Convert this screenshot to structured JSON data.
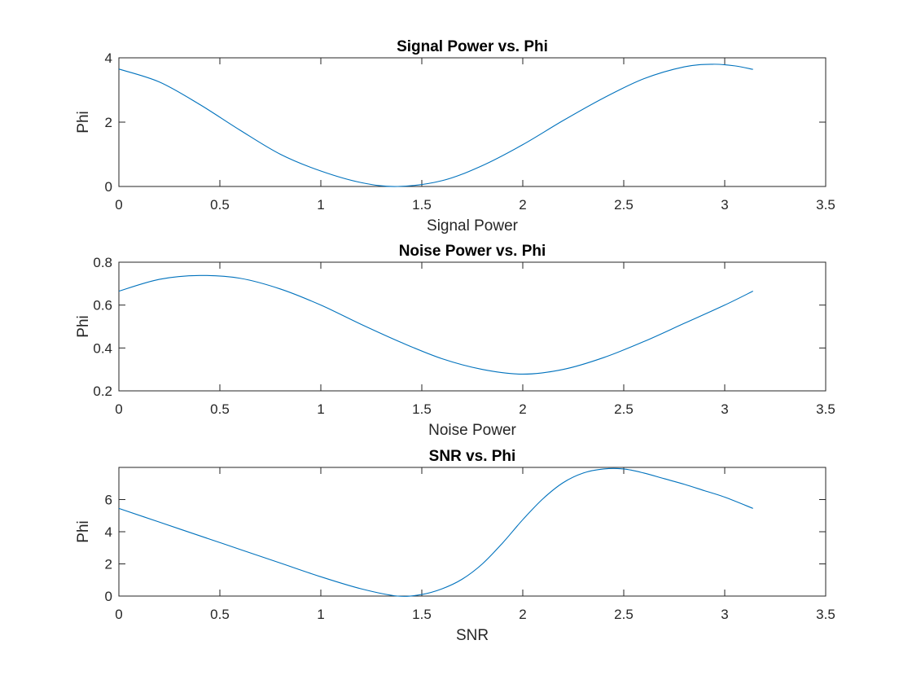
{
  "figure": {
    "background": "#ffffff",
    "line_color": "#0072BD"
  },
  "chart_data": [
    {
      "type": "line",
      "title": "Signal Power vs. Phi",
      "xlabel": "Signal Power",
      "ylabel": "Phi",
      "xlim": [
        0,
        3.5
      ],
      "ylim": [
        0,
        4
      ],
      "xticks": [
        "0",
        "0.5",
        "1",
        "1.5",
        "2",
        "2.5",
        "3",
        "3.5"
      ],
      "yticks": [
        "0",
        "2",
        "4"
      ],
      "grid": false,
      "series": [
        {
          "x": [
            0,
            0.2,
            0.4,
            0.6,
            0.8,
            1.0,
            1.2,
            1.38,
            1.6,
            1.8,
            2.0,
            2.2,
            2.4,
            2.6,
            2.8,
            2.94,
            3.05,
            3.14
          ],
          "y": [
            3.65,
            3.25,
            2.55,
            1.75,
            1.0,
            0.48,
            0.12,
            0.0,
            0.18,
            0.65,
            1.3,
            2.05,
            2.75,
            3.35,
            3.72,
            3.8,
            3.75,
            3.64
          ]
        }
      ]
    },
    {
      "type": "line",
      "title": "Noise Power vs. Phi",
      "xlabel": "Noise Power",
      "ylabel": "Phi",
      "xlim": [
        0,
        3.5
      ],
      "ylim": [
        0.2,
        0.8
      ],
      "xticks": [
        "0",
        "0.5",
        "1",
        "1.5",
        "2",
        "2.5",
        "3",
        "3.5"
      ],
      "yticks": [
        "0.2",
        "0.4",
        "0.6",
        "0.8"
      ],
      "grid": false,
      "series": [
        {
          "x": [
            0,
            0.2,
            0.4,
            0.6,
            0.8,
            1.0,
            1.2,
            1.4,
            1.6,
            1.8,
            2.0,
            2.2,
            2.4,
            2.6,
            2.8,
            3.0,
            3.14
          ],
          "y": [
            0.665,
            0.72,
            0.738,
            0.725,
            0.675,
            0.6,
            0.51,
            0.425,
            0.35,
            0.3,
            0.278,
            0.3,
            0.355,
            0.43,
            0.515,
            0.6,
            0.665
          ]
        }
      ]
    },
    {
      "type": "line",
      "title": "SNR vs. Phi",
      "xlabel": "SNR",
      "ylabel": "Phi",
      "xlim": [
        0,
        3.5
      ],
      "ylim": [
        0,
        8
      ],
      "xticks": [
        "0",
        "0.5",
        "1",
        "1.5",
        "2",
        "2.5",
        "3",
        "3.5"
      ],
      "yticks": [
        "0",
        "2",
        "4",
        "6"
      ],
      "grid": false,
      "series": [
        {
          "x": [
            0,
            0.2,
            0.4,
            0.6,
            0.8,
            1.0,
            1.2,
            1.38,
            1.5,
            1.6,
            1.7,
            1.8,
            1.9,
            2.0,
            2.1,
            2.2,
            2.3,
            2.4,
            2.5,
            2.6,
            2.7,
            2.8,
            2.9,
            3.0,
            3.14
          ],
          "y": [
            5.45,
            4.6,
            3.75,
            2.9,
            2.05,
            1.2,
            0.45,
            0.0,
            0.1,
            0.45,
            1.05,
            2.0,
            3.3,
            4.75,
            6.05,
            7.05,
            7.65,
            7.9,
            7.9,
            7.65,
            7.3,
            6.95,
            6.55,
            6.15,
            5.45
          ]
        }
      ]
    }
  ]
}
